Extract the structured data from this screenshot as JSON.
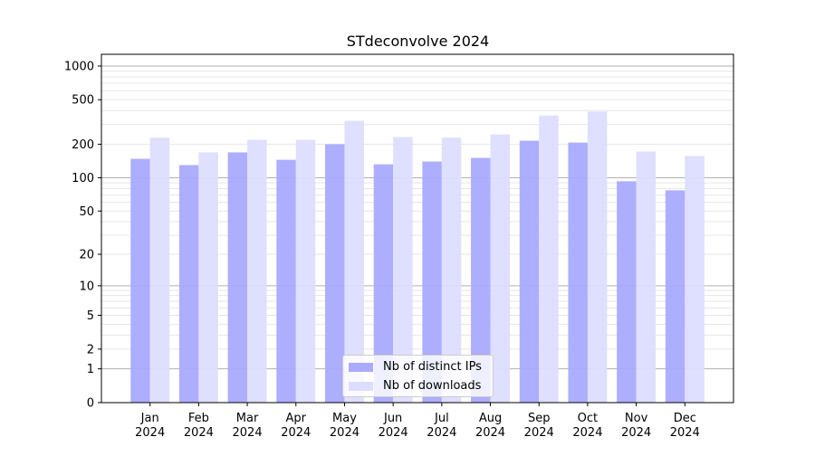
{
  "chart_data": {
    "type": "bar",
    "title": "STdeconvolve 2024",
    "xlabel": "",
    "ylabel": "",
    "yscale": "log(1+y)",
    "ylim": [
      0,
      1200
    ],
    "yticks": [
      0,
      1,
      2,
      5,
      10,
      20,
      50,
      100,
      200,
      500,
      1000
    ],
    "grid": true,
    "legend_position": "lower center",
    "categories": [
      "Jan\n2024",
      "Feb\n2024",
      "Mar\n2024",
      "Apr\n2024",
      "May\n2024",
      "Jun\n2024",
      "Jul\n2024",
      "Aug\n2024",
      "Sep\n2024",
      "Oct\n2024",
      "Nov\n2024",
      "Dec\n2024"
    ],
    "series": [
      {
        "name": "Nb of distinct IPs",
        "color": "#aaaaff",
        "values": [
          148,
          130,
          169,
          145,
          200,
          132,
          140,
          151,
          215,
          207,
          93,
          77
        ]
      },
      {
        "name": "Nb of downloads",
        "color": "#ddddff",
        "values": [
          229,
          169,
          219,
          219,
          324,
          232,
          229,
          245,
          362,
          391,
          172,
          157
        ]
      }
    ]
  }
}
